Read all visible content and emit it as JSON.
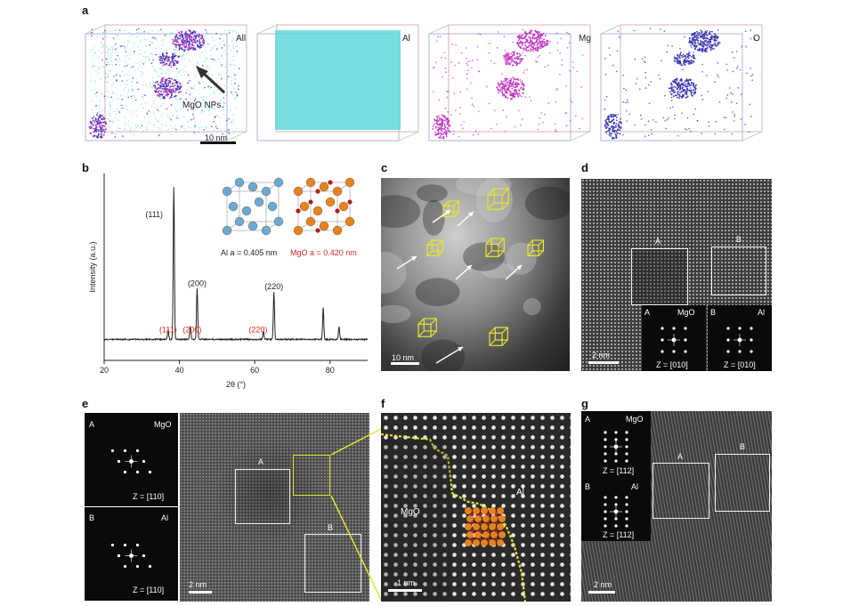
{
  "panels": {
    "a": {
      "label": "a",
      "boxes": [
        {
          "element": "All",
          "scalebar": "10 nm",
          "arrow_label": "MgO NPs"
        },
        {
          "element": "Al"
        },
        {
          "element": "Mg"
        },
        {
          "element": "O"
        }
      ]
    },
    "b": {
      "label": "b"
    },
    "c": {
      "label": "c",
      "scalebar": "10 nm"
    },
    "d": {
      "label": "d",
      "scalebar": "2 nm",
      "box_a": "A",
      "box_b": "B",
      "inset_a": {
        "tag": "A",
        "phase": "MgO",
        "zone": "Z = [010]"
      },
      "inset_b": {
        "tag": "B",
        "phase": "Al",
        "zone": "Z = [010]"
      }
    },
    "e": {
      "label": "e",
      "scalebar": "2 nm",
      "box_a": "A",
      "box_b": "B",
      "inset_a": {
        "tag": "A",
        "phase": "MgO",
        "zone": "Z = [110]"
      },
      "inset_b": {
        "tag": "B",
        "phase": "Al",
        "zone": "Z = [110]"
      }
    },
    "f": {
      "label": "f",
      "scalebar": "1 nm",
      "left_phase": "MgO",
      "right_phase": "Al"
    },
    "g": {
      "label": "g",
      "scalebar": "2 nm",
      "box_a": "A",
      "box_b": "B",
      "inset_a": {
        "tag": "A",
        "phase": "MgO",
        "zone": "Z = [112]"
      },
      "inset_b": {
        "tag": "B",
        "phase": "Al",
        "zone": "Z = [112]"
      }
    }
  },
  "colors": {
    "al_atom": "#6fa8d0",
    "mgo_orange": "#e8821e",
    "mgo_red": "#b0201e",
    "red_label": "#d62b1f",
    "yellow": "#e6e62a",
    "cyan": "#5fd9dc",
    "magenta": "#c13bc4",
    "blue": "#3b38b5"
  },
  "chart_data": {
    "type": "line",
    "xlabel": "2θ (°)",
    "ylabel": "Intensity (a.u.)",
    "xlim": [
      20,
      90
    ],
    "xticks": [
      "20",
      "40",
      "60",
      "80"
    ],
    "grid": false,
    "peaks": [
      {
        "x": 38.5,
        "y": 0.95,
        "label": "(111)",
        "phase": "Al"
      },
      {
        "x": 37.0,
        "y": 0.06,
        "label": "(111)",
        "phase": "MgO"
      },
      {
        "x": 42.9,
        "y": 0.08,
        "label": "(200)",
        "phase": "MgO"
      },
      {
        "x": 44.7,
        "y": 0.32,
        "label": "(200)",
        "phase": "Al"
      },
      {
        "x": 62.3,
        "y": 0.05,
        "label": "(220)",
        "phase": "MgO"
      },
      {
        "x": 65.1,
        "y": 0.3,
        "label": "(220)",
        "phase": "Al"
      },
      {
        "x": 78.2,
        "y": 0.2,
        "label": "",
        "phase": "Al"
      },
      {
        "x": 82.4,
        "y": 0.08,
        "label": "",
        "phase": "Al"
      }
    ],
    "legend": [
      {
        "name": "Al a = 0.405 nm",
        "color": "#222222"
      },
      {
        "name": "MgO a = 0.420 nm",
        "color": "#d62b1f"
      }
    ]
  }
}
